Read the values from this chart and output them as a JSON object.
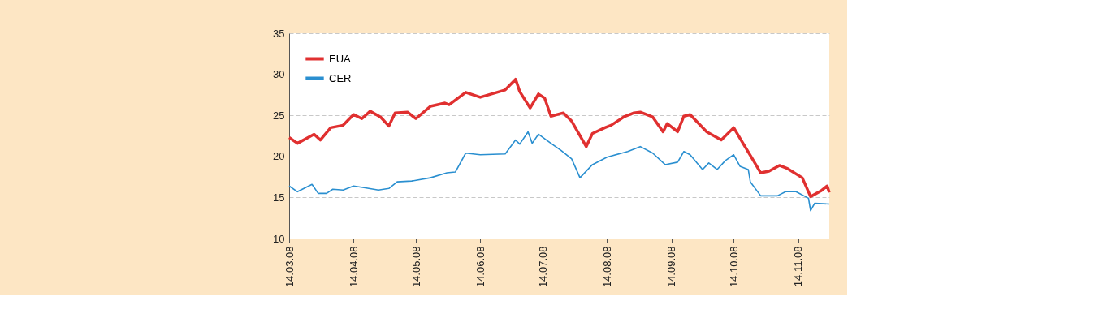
{
  "chart_data": {
    "type": "line",
    "xlim": [
      "2008-03-14",
      "2008-11-29"
    ],
    "xticks": [
      {
        "value": "2008-03-14",
        "label": "14.03.08"
      },
      {
        "value": "2008-04-14",
        "label": "14.04.08"
      },
      {
        "value": "2008-05-14",
        "label": "14.05.08"
      },
      {
        "value": "2008-06-14",
        "label": "14.06.08"
      },
      {
        "value": "2008-07-14",
        "label": "14.07.08"
      },
      {
        "value": "2008-08-14",
        "label": "14.08.08"
      },
      {
        "value": "2008-09-14",
        "label": "14.09.08"
      },
      {
        "value": "2008-10-14",
        "label": "14.10.08"
      },
      {
        "value": "2008-11-14",
        "label": "14.11.08"
      }
    ],
    "ylim": [
      10,
      35
    ],
    "yticks": [
      10,
      15,
      20,
      25,
      30,
      35
    ],
    "grid": "y",
    "legend": "top left",
    "line_style": "solid",
    "marker": "none",
    "series": [
      {
        "name": "EUA",
        "color": "#e03030",
        "x": [
          "2008-03-14",
          "2008-03-18",
          "2008-03-26",
          "2008-03-29",
          "2008-04-03",
          "2008-04-09",
          "2008-04-14",
          "2008-04-18",
          "2008-04-22",
          "2008-04-27",
          "2008-05-01",
          "2008-05-04",
          "2008-05-10",
          "2008-05-14",
          "2008-05-21",
          "2008-05-28",
          "2008-05-30",
          "2008-06-07",
          "2008-06-14",
          "2008-06-26",
          "2008-07-01",
          "2008-07-03",
          "2008-07-08",
          "2008-07-12",
          "2008-07-15",
          "2008-07-18",
          "2008-07-24",
          "2008-07-28",
          "2008-08-04",
          "2008-08-07",
          "2008-08-13",
          "2008-08-16",
          "2008-08-22",
          "2008-08-27",
          "2008-08-30",
          "2008-09-05",
          "2008-09-10",
          "2008-09-12",
          "2008-09-17",
          "2008-09-20",
          "2008-09-23",
          "2008-10-01",
          "2008-10-08",
          "2008-10-14",
          "2008-10-18",
          "2008-10-23",
          "2008-10-27",
          "2008-10-31",
          "2008-11-05",
          "2008-11-09",
          "2008-11-16",
          "2008-11-20",
          "2008-11-25",
          "2008-11-28",
          "2008-11-29"
        ],
        "values": [
          22.3,
          21.6,
          22.7,
          22.0,
          23.5,
          23.8,
          25.1,
          24.6,
          25.5,
          24.8,
          23.7,
          25.3,
          25.4,
          24.6,
          26.1,
          26.5,
          26.3,
          27.8,
          27.2,
          28.1,
          29.4,
          27.9,
          25.9,
          27.6,
          27.1,
          24.9,
          25.3,
          24.3,
          21.2,
          22.8,
          23.5,
          23.8,
          24.8,
          25.3,
          25.4,
          24.8,
          23.0,
          24.0,
          23.0,
          24.9,
          25.1,
          23.0,
          22.0,
          23.5,
          21.8,
          19.7,
          18.0,
          18.2,
          18.9,
          18.5,
          17.4,
          15.1,
          15.8,
          16.4,
          15.6
        ]
      },
      {
        "name": "CER",
        "color": "#2a8fd0",
        "x": [
          "2008-03-14",
          "2008-03-18",
          "2008-03-25",
          "2008-03-28",
          "2008-04-01",
          "2008-04-04",
          "2008-04-09",
          "2008-04-14",
          "2008-04-19",
          "2008-04-26",
          "2008-05-01",
          "2008-05-05",
          "2008-05-12",
          "2008-05-21",
          "2008-05-29",
          "2008-06-02",
          "2008-06-07",
          "2008-06-14",
          "2008-06-26",
          "2008-07-01",
          "2008-07-03",
          "2008-07-07",
          "2008-07-09",
          "2008-07-12",
          "2008-07-18",
          "2008-07-23",
          "2008-07-28",
          "2008-08-01",
          "2008-08-07",
          "2008-08-14",
          "2008-08-24",
          "2008-08-27",
          "2008-08-30",
          "2008-09-05",
          "2008-09-11",
          "2008-09-17",
          "2008-09-20",
          "2008-09-23",
          "2008-09-29",
          "2008-10-02",
          "2008-10-06",
          "2008-10-10",
          "2008-10-14",
          "2008-10-17",
          "2008-10-21",
          "2008-10-22",
          "2008-10-27",
          "2008-11-04",
          "2008-11-08",
          "2008-11-13",
          "2008-11-19",
          "2008-11-20",
          "2008-11-22",
          "2008-11-29"
        ],
        "values": [
          16.4,
          15.7,
          16.6,
          15.5,
          15.5,
          16.0,
          15.9,
          16.4,
          16.2,
          15.9,
          16.1,
          16.9,
          17.0,
          17.4,
          18.0,
          18.1,
          20.4,
          20.2,
          20.3,
          22.0,
          21.5,
          23.0,
          21.6,
          22.7,
          21.6,
          20.7,
          19.7,
          17.4,
          19.0,
          19.9,
          20.6,
          20.9,
          21.2,
          20.4,
          19.0,
          19.3,
          20.6,
          20.2,
          18.4,
          19.2,
          18.4,
          19.5,
          20.2,
          18.8,
          18.4,
          16.9,
          15.2,
          15.2,
          15.7,
          15.7,
          14.9,
          13.4,
          14.3,
          14.2
        ]
      }
    ]
  }
}
